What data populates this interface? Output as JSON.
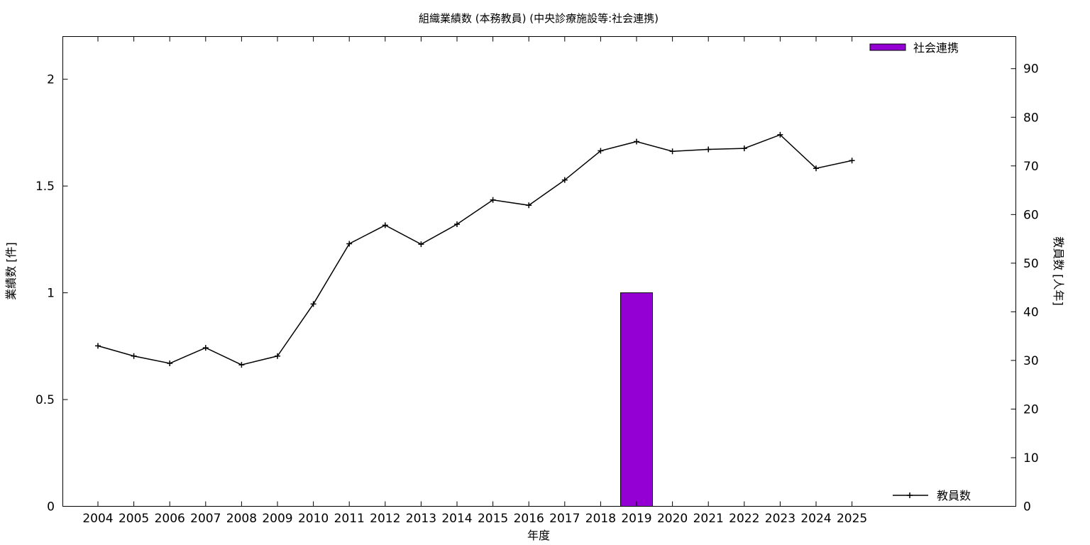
{
  "chart_data": {
    "type": "bar+line",
    "title": "組織業績数 (本務教員) (中央診療施設等:社会連携)",
    "xlabel": "年度",
    "ylabel_left": "業績数 [件]",
    "ylabel_right": "教員数 [人年]",
    "categories": [
      "2004",
      "2005",
      "2006",
      "2007",
      "2008",
      "2009",
      "2010",
      "2011",
      "2012",
      "2013",
      "2014",
      "2015",
      "2016",
      "2017",
      "2018",
      "2019",
      "2020",
      "2021",
      "2022",
      "2023",
      "2024",
      "2025"
    ],
    "y_left_range": [
      0,
      2.2
    ],
    "y_left_ticks": [
      "0",
      "0.5",
      "1",
      "1.5",
      "2"
    ],
    "y_right_range": [
      0,
      96.6
    ],
    "y_right_ticks": [
      "0",
      "10",
      "20",
      "30",
      "40",
      "50",
      "60",
      "70",
      "80",
      "90"
    ],
    "grid": false,
    "series": [
      {
        "name": "社会連携",
        "kind": "bar",
        "axis": "left",
        "color": "#9400d3",
        "values": [
          0,
          0,
          0,
          0,
          0,
          0,
          0,
          0,
          0,
          0,
          0,
          0,
          0,
          0,
          0,
          1,
          0,
          0,
          0,
          0,
          0,
          0
        ]
      },
      {
        "name": "教員数",
        "kind": "line",
        "axis": "right",
        "color": "#000000",
        "marker": "plus",
        "values": [
          33.0,
          30.9,
          29.4,
          32.6,
          29.1,
          30.9,
          41.6,
          54.0,
          57.8,
          53.9,
          58.0,
          63.0,
          61.9,
          67.1,
          73.1,
          75.0,
          73.0,
          73.4,
          73.6,
          76.4,
          69.5,
          71.1
        ]
      }
    ],
    "legend": [
      {
        "label": "社会連携",
        "placement": "top-right"
      },
      {
        "label": "教員数",
        "placement": "bottom-right"
      }
    ]
  }
}
